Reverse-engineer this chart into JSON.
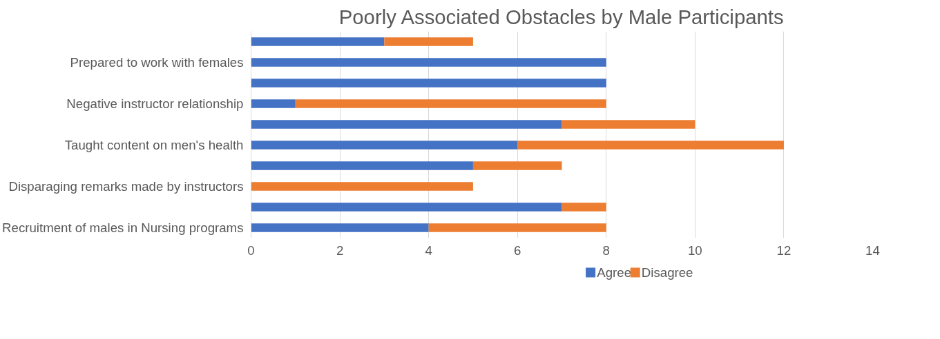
{
  "chart_data": {
    "type": "bar",
    "orientation": "horizontal",
    "stacked": true,
    "title": "Poorly Associated Obstacles by Male Participants",
    "categories": [
      null,
      "Prepared to work with females",
      null,
      "Negative instructor relationship",
      null,
      "Taught content on men's health",
      null,
      "Disparaging remarks made by instructors",
      null,
      "Recruitment of males in Nursing programs"
    ],
    "series": [
      {
        "name": "Agree",
        "color": "#4472c4",
        "values": [
          3,
          8,
          8,
          1,
          7,
          6,
          5,
          0,
          7,
          4
        ]
      },
      {
        "name": "Disagree",
        "color": "#ed7d31",
        "values": [
          2,
          0,
          0,
          7,
          3,
          6,
          2,
          5,
          1,
          4
        ]
      }
    ],
    "xlim": [
      0,
      14
    ],
    "xticks": [
      0,
      2,
      4,
      6,
      8,
      10,
      12,
      14
    ],
    "grid": "x",
    "legend": "bottom"
  }
}
